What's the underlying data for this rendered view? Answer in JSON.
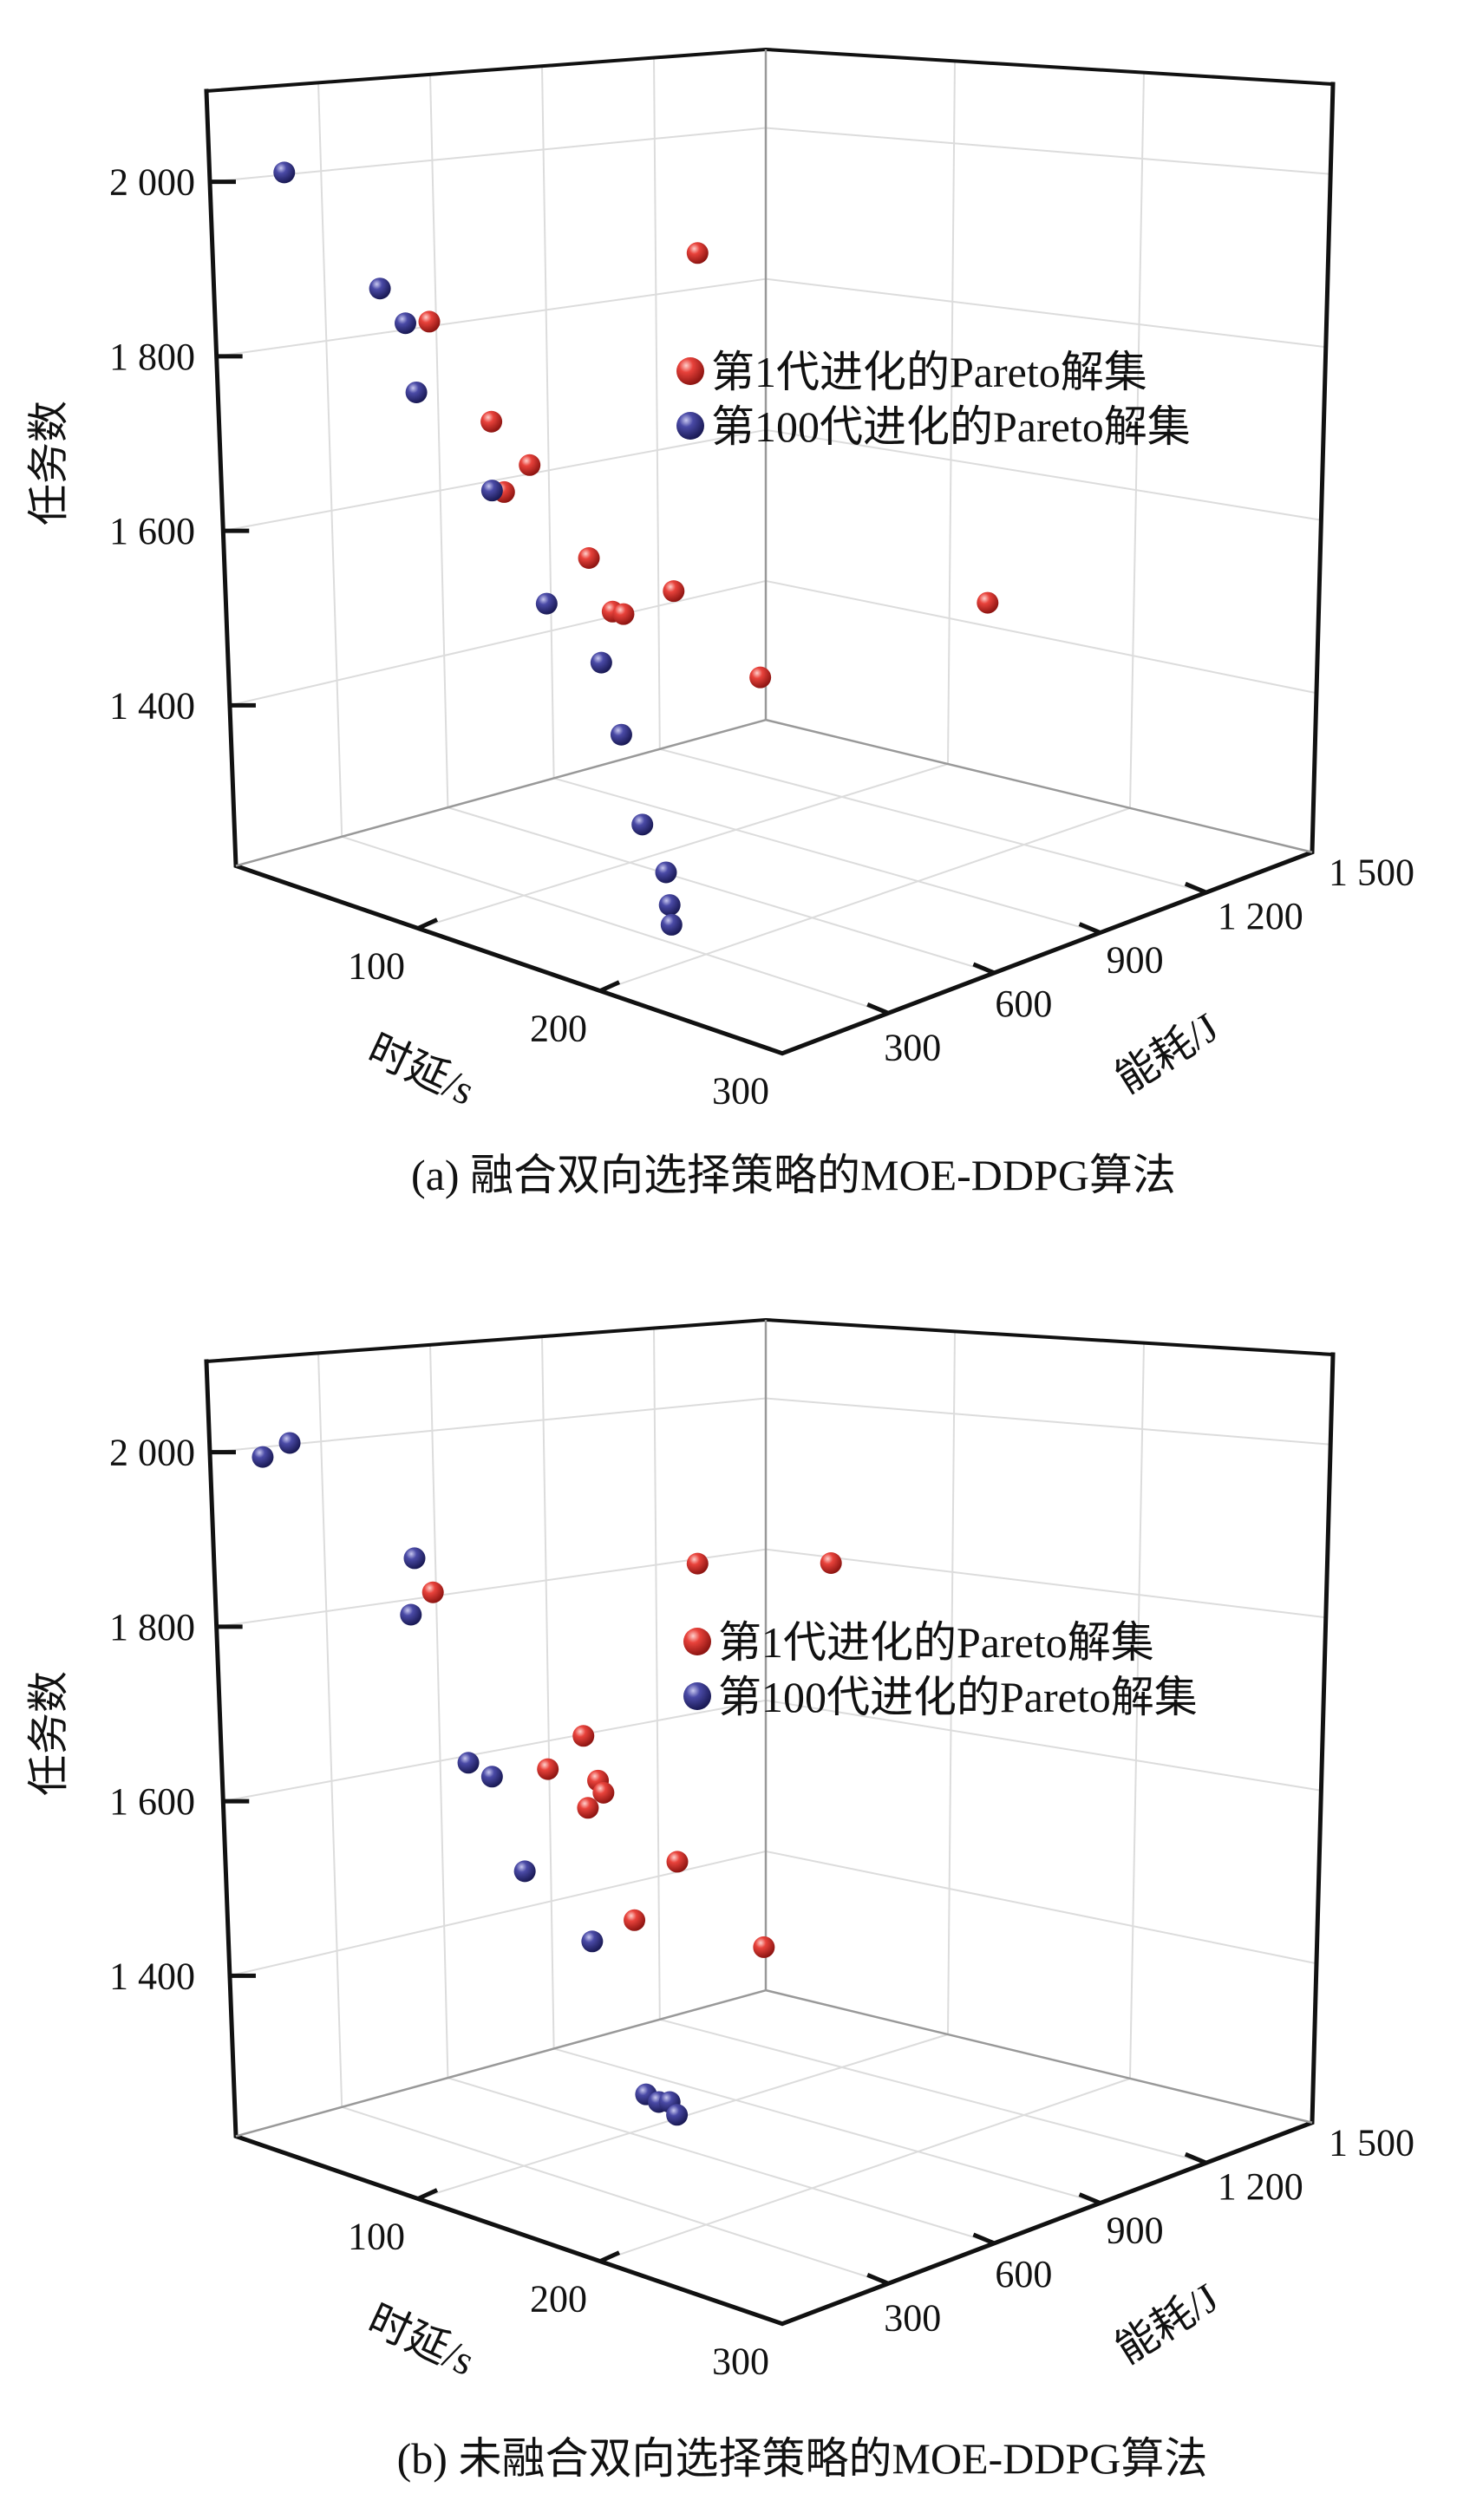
{
  "colors": {
    "gen1": "#d8312c",
    "gen100": "#3c3c94"
  },
  "legend": {
    "gen1": "第1代进化的Pareto解集",
    "gen100": "第100代进化的Pareto解集"
  },
  "chart_data": [
    {
      "type": "scatter",
      "subtype": "3d-scatter",
      "title": "(a) 融合双向选择策略的MOE-DDPG算法",
      "xlabel": "时延/s",
      "ylabel": "能耗/J",
      "zlabel": "任务数",
      "xlim": [
        0,
        300
      ],
      "ylim": [
        0,
        1500
      ],
      "zlim": [
        1216,
        2104
      ],
      "xticks": [
        100,
        200,
        300
      ],
      "xtick_labels": [
        "100",
        "200",
        "300"
      ],
      "yticks": [
        300,
        600,
        900,
        1200,
        1500
      ],
      "ytick_labels": [
        "300",
        "600",
        "900",
        "1 200",
        "1 500"
      ],
      "zticks": [
        1400,
        1600,
        1800,
        2000
      ],
      "ztick_labels": [
        "1 400",
        "1 600",
        "1 800",
        "2 000"
      ],
      "grid": true,
      "legend_position": "top-right",
      "series": [
        {
          "name": "第1代进化的Pareto解集",
          "color": "#d8312c",
          "points": [
            [
              108,
              750,
              1900
            ],
            [
              48,
              300,
              1838
            ],
            [
              53,
              450,
              1709
            ],
            [
              74,
              450,
              1673
            ],
            [
              60,
              450,
              1633
            ],
            [
              92,
              525,
              1569
            ],
            [
              124,
              600,
              1542
            ],
            [
              105,
              525,
              1516
            ],
            [
              111,
              525,
              1517
            ],
            [
              180,
              1200,
              1482
            ],
            [
              157,
              675,
              1454
            ]
          ]
        },
        {
          "name": "第100代进化的Pareto解集",
          "color": "#3c3c94",
          "points": [
            [
              12,
              75,
              2010
            ],
            [
              50,
              150,
              1895
            ],
            [
              64,
              150,
              1865
            ],
            [
              70,
              150,
              1790
            ],
            [
              97,
              225,
              1687
            ],
            [
              127,
              225,
              1578
            ],
            [
              157,
              225,
              1531
            ],
            [
              168,
              225,
              1456
            ],
            [
              165,
              300,
              1341
            ],
            [
              178,
              300,
              1295
            ],
            [
              180,
              300,
              1259
            ],
            [
              181,
              300,
              1237
            ]
          ]
        }
      ]
    },
    {
      "type": "scatter",
      "subtype": "3d-scatter",
      "title": "(b) 未融合双向选择策略的MOE-DDPG算法",
      "xlabel": "时延/s",
      "ylabel": "能耗/J",
      "zlabel": "任务数",
      "xlim": [
        0,
        300
      ],
      "ylim": [
        0,
        1500
      ],
      "zlim": [
        1216,
        2104
      ],
      "xticks": [
        100,
        200,
        300
      ],
      "xtick_labels": [
        "100",
        "200",
        "300"
      ],
      "yticks": [
        300,
        600,
        900,
        1200,
        1500
      ],
      "ytick_labels": [
        "300",
        "600",
        "900",
        "1 200",
        "1 500"
      ],
      "zticks": [
        1400,
        1600,
        1800,
        2000
      ],
      "ztick_labels": [
        "1 400",
        "1 600",
        "1 800",
        "2 000"
      ],
      "grid": true,
      "legend_position": "top-right",
      "series": [
        {
          "name": "第1代进化的Pareto解集",
          "color": "#d8312c",
          "points": [
            [
              108,
              750,
              1854
            ],
            [
              94,
              1200,
              1790
            ],
            [
              50,
              300,
              1839
            ],
            [
              89,
              525,
              1673
            ],
            [
              84,
              450,
              1641
            ],
            [
              97,
              525,
              1627
            ],
            [
              100,
              525,
              1615
            ],
            [
              106,
              450,
              1611
            ],
            [
              126,
              600,
              1543
            ],
            [
              117,
              525,
              1480
            ],
            [
              159,
              675,
              1456
            ]
          ]
        },
        {
          "name": "第100代进化的Pareto解集",
          "color": "#3c3c94",
          "points": [
            [
              6,
              45,
              1993
            ],
            [
              15,
              75,
              2012
            ],
            [
              69,
              150,
              1909
            ],
            [
              67,
              150,
              1843
            ],
            [
              84,
              225,
              1676
            ],
            [
              97,
              225,
              1669
            ],
            [
              115,
              225,
              1573
            ],
            [
              152,
              225,
              1518
            ],
            [
              167,
              300,
              1343
            ],
            [
              174,
              300,
              1339
            ],
            [
              180,
              300,
              1343
            ],
            [
              184,
              300,
              1331
            ]
          ]
        }
      ]
    }
  ]
}
